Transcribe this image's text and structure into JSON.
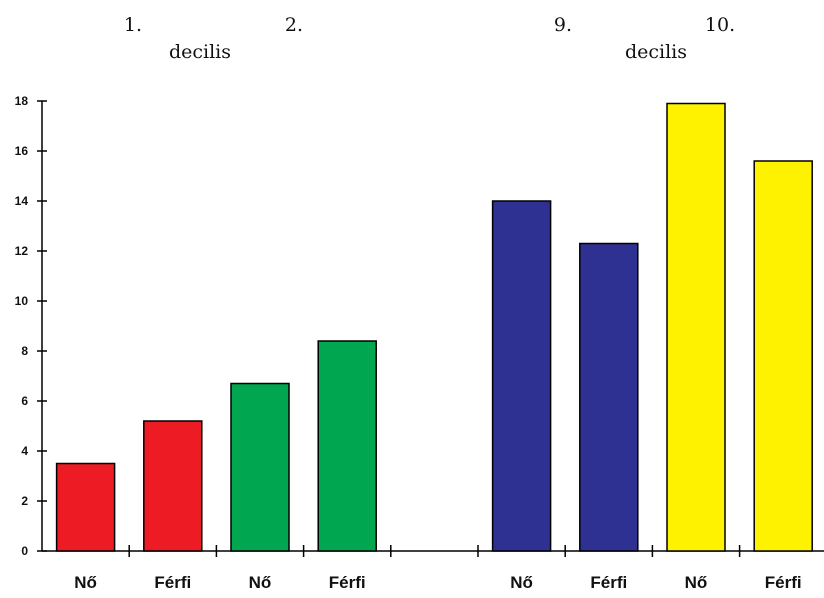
{
  "chart_data": {
    "type": "bar",
    "group_labels": [
      {
        "numbers": [
          "1.",
          "2."
        ],
        "word": "decilis"
      },
      {
        "numbers": [
          "9.",
          "10."
        ],
        "word": "decilis"
      }
    ],
    "categories": [
      "Nő",
      "Férfi",
      "Nő",
      "Férfi",
      "",
      "Nő",
      "Férfi",
      "Nő",
      "Férfi"
    ],
    "values": [
      3.5,
      5.2,
      6.7,
      8.4,
      null,
      14.0,
      12.3,
      17.9,
      15.6
    ],
    "colors": [
      "#ed1c24",
      "#ed1c24",
      "#00a650",
      "#00a650",
      null,
      "#2e3192",
      "#2e3192",
      "#fff200",
      "#fff200"
    ],
    "ylim": [
      0,
      18
    ],
    "yticks": [
      "0",
      "2",
      "4",
      "6",
      "8",
      "10",
      "12",
      "14",
      "16",
      "18"
    ],
    "grid": false
  }
}
